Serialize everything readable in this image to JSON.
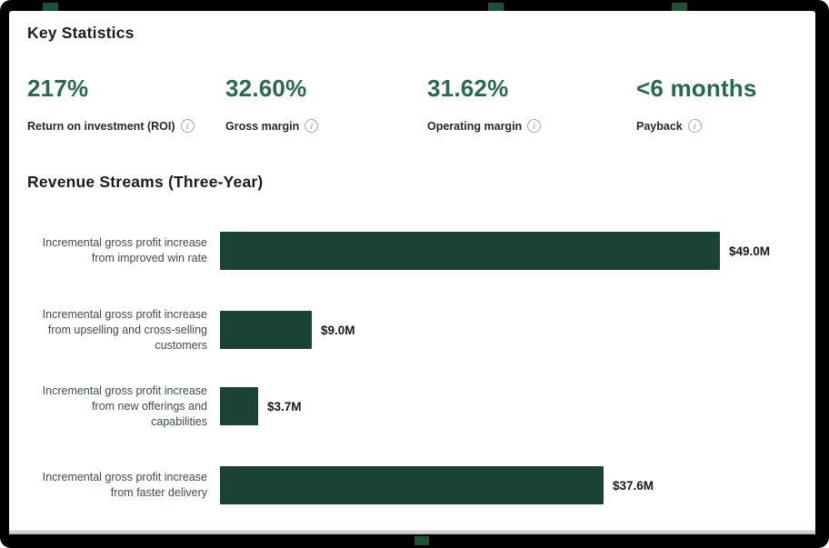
{
  "page": {
    "key_statistics": {
      "title": "Key Statistics",
      "stats": [
        {
          "value": "217%",
          "label": "Return on investment (ROI)"
        },
        {
          "value": "32.60%",
          "label": "Gross margin"
        },
        {
          "value": "31.62%",
          "label": "Operating margin"
        },
        {
          "value": "<6 months",
          "label": "Payback"
        }
      ]
    },
    "revenue_section": {
      "title": "Revenue Streams (Three-Year)"
    }
  },
  "chart_data": {
    "type": "bar",
    "orientation": "horizontal",
    "title": "Revenue Streams (Three-Year)",
    "categories": [
      "Incremental gross profit increase from improved win rate",
      "Incremental gross profit increase from upselling and cross-selling customers",
      "Incremental gross profit increase from new offerings and capabilities",
      "Incremental gross profit increase from faster delivery"
    ],
    "categories_multiline": [
      "Incremental gross profit increase\nfrom improved win rate",
      "Incremental gross profit increase\nfrom upselling and cross-selling\ncustomers",
      "Incremental gross profit increase\nfrom new offerings and\ncapabilities",
      "Incremental gross profit increase\nfrom faster delivery"
    ],
    "values": [
      49.0,
      9.0,
      3.7,
      37.6
    ],
    "value_labels": [
      "$49.0M",
      "$9.0M",
      "$3.7M",
      "$37.6M"
    ],
    "unit": "USD millions",
    "xlim": [
      0,
      49
    ],
    "grid": false,
    "legend": false,
    "bar_color": "#1a4334",
    "value_label_position": "right-of-bar"
  },
  "colors": {
    "stat_value_green": "#2a6a4c",
    "bar_green": "#1a4334",
    "heading_text": "#1c1c1e",
    "category_text": "#3f4a54",
    "info_icon_gray": "#a2a8ae",
    "frame_black": "#000000"
  },
  "icons": {
    "info": "i"
  }
}
